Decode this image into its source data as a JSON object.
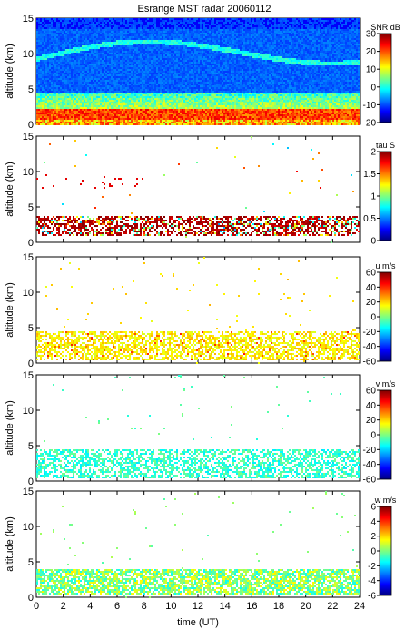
{
  "title": "Esrange MST radar 20060112",
  "xlabel": "time (UT)",
  "ylabel": "altitude (km)",
  "xticks": [
    0,
    2,
    4,
    6,
    8,
    10,
    12,
    14,
    16,
    18,
    20,
    22,
    24
  ],
  "yticks": [
    0,
    5,
    10,
    15
  ],
  "colormap": [
    "#00007f",
    "#0000ff",
    "#007fff",
    "#00ffff",
    "#7fff7f",
    "#ffff00",
    "#ff7f00",
    "#ff0000",
    "#7f0000"
  ],
  "chart_data": [
    {
      "type": "heatmap",
      "name": "snr",
      "title": "Esrange MST radar 20060112",
      "ylabel": "altitude (km)",
      "xlim": [
        0,
        24
      ],
      "ylim": [
        0,
        15
      ],
      "colorbar": {
        "label": "SNR dB",
        "range": [
          -20,
          30
        ],
        "ticks": [
          -20,
          -10,
          0,
          10,
          20,
          30
        ]
      }
    },
    {
      "type": "heatmap",
      "name": "tau",
      "ylabel": "altitude (km)",
      "xlim": [
        0,
        24
      ],
      "ylim": [
        0,
        15
      ],
      "colorbar": {
        "label": "tau S",
        "range": [
          0,
          2
        ],
        "ticks": [
          0,
          0.5,
          1,
          1.5,
          2
        ],
        "tick_labels": [
          "0",
          "0.5",
          "1",
          "1.5",
          "2"
        ]
      }
    },
    {
      "type": "heatmap",
      "name": "u",
      "ylabel": "altitude (km)",
      "xlim": [
        0,
        24
      ],
      "ylim": [
        0,
        15
      ],
      "colorbar": {
        "label": "u m/s",
        "range": [
          -60,
          60
        ],
        "ticks": [
          -60,
          -40,
          -20,
          0,
          20,
          40,
          60
        ]
      }
    },
    {
      "type": "heatmap",
      "name": "v",
      "ylabel": "altitude (km)",
      "xlim": [
        0,
        24
      ],
      "ylim": [
        0,
        15
      ],
      "colorbar": {
        "label": "v m/s",
        "range": [
          -60,
          60
        ],
        "ticks": [
          -60,
          -40,
          -20,
          0,
          20,
          40,
          60
        ]
      }
    },
    {
      "type": "heatmap",
      "name": "w",
      "ylabel": "altitude (km)",
      "xlabel": "time (UT)",
      "xlim": [
        0,
        24
      ],
      "ylim": [
        0,
        15
      ],
      "colorbar": {
        "label": "w m/s",
        "range": [
          -6,
          6
        ],
        "ticks": [
          -6,
          -4,
          -2,
          0,
          2,
          4,
          6
        ]
      }
    }
  ]
}
